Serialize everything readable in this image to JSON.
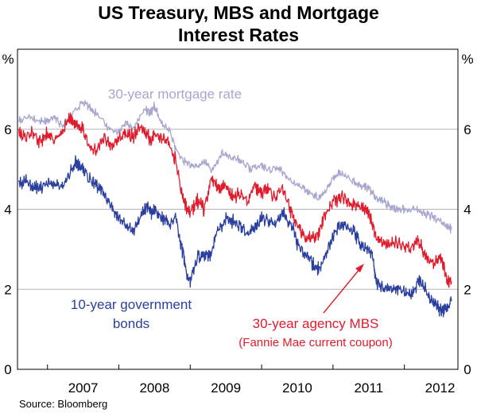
{
  "chart_data": {
    "type": "line",
    "title_line1": "US Treasury, MBS and Mortgage",
    "title_line2": "Interest Rates",
    "y_unit_left": "%",
    "y_unit_right": "%",
    "source": "Source: Bloomberg",
    "xlim": [
      2006.58,
      2012.75
    ],
    "ylim": [
      0,
      8
    ],
    "y_ticks": [
      0,
      2,
      4,
      6
    ],
    "x_ticks": [
      {
        "label": "2007",
        "year": 2007
      },
      {
        "label": "2008",
        "year": 2008
      },
      {
        "label": "2009",
        "year": 2009
      },
      {
        "label": "2010",
        "year": 2010
      },
      {
        "label": "2011",
        "year": 2011
      },
      {
        "label": "2012",
        "year": 2012
      }
    ],
    "grid": true,
    "colors": {
      "mortgage": "#a6a6cf",
      "mbs": "#e01b2c",
      "bonds": "#2a3f9e",
      "grid": "#b4b4b4"
    },
    "annotations": {
      "mortgage": "30-year mortgage rate",
      "bonds_line1": "10-year government",
      "bonds_line2": "bonds",
      "mbs_line1": "30-year agency MBS",
      "mbs_line2": "(Fannie Mae current coupon)"
    },
    "series": [
      {
        "key": "mortgage",
        "x": [
          2006.6,
          2006.75,
          2006.9,
          2007.0,
          2007.1,
          2007.2,
          2007.35,
          2007.5,
          2007.6,
          2007.7,
          2007.85,
          2008.0,
          2008.1,
          2008.2,
          2008.35,
          2008.45,
          2008.5,
          2008.6,
          2008.7,
          2008.8,
          2008.9,
          2009.0,
          2009.1,
          2009.2,
          2009.3,
          2009.45,
          2009.55,
          2009.7,
          2009.85,
          2010.0,
          2010.1,
          2010.25,
          2010.35,
          2010.5,
          2010.6,
          2010.7,
          2010.8,
          2010.9,
          2011.0,
          2011.1,
          2011.2,
          2011.3,
          2011.4,
          2011.5,
          2011.6,
          2011.7,
          2011.8,
          2011.9,
          2012.0,
          2012.1,
          2012.2,
          2012.3,
          2012.4,
          2012.5,
          2012.6,
          2012.66
        ],
        "y": [
          6.2,
          6.3,
          6.2,
          6.2,
          6.3,
          6.1,
          6.4,
          6.7,
          6.5,
          6.4,
          6.0,
          5.9,
          6.2,
          6.0,
          6.5,
          6.4,
          6.6,
          6.1,
          6.0,
          5.5,
          5.2,
          5.1,
          5.1,
          5.2,
          5.0,
          5.4,
          5.3,
          5.2,
          5.0,
          5.1,
          5.0,
          5.0,
          4.8,
          4.6,
          4.5,
          4.4,
          4.3,
          4.5,
          4.8,
          4.9,
          4.8,
          4.7,
          4.6,
          4.5,
          4.3,
          4.2,
          4.1,
          4.0,
          4.0,
          4.0,
          4.0,
          3.9,
          3.8,
          3.7,
          3.6,
          3.5
        ]
      },
      {
        "key": "mbs",
        "x": [
          2006.6,
          2006.7,
          2006.8,
          2006.9,
          2007.0,
          2007.1,
          2007.2,
          2007.3,
          2007.4,
          2007.5,
          2007.6,
          2007.7,
          2007.8,
          2007.9,
          2008.0,
          2008.1,
          2008.2,
          2008.3,
          2008.4,
          2008.45,
          2008.5,
          2008.6,
          2008.7,
          2008.8,
          2008.9,
          2008.95,
          2009.0,
          2009.1,
          2009.2,
          2009.3,
          2009.4,
          2009.5,
          2009.6,
          2009.7,
          2009.8,
          2009.9,
          2010.0,
          2010.1,
          2010.2,
          2010.3,
          2010.4,
          2010.5,
          2010.6,
          2010.7,
          2010.8,
          2010.9,
          2011.0,
          2011.1,
          2011.2,
          2011.3,
          2011.4,
          2011.5,
          2011.55,
          2011.6,
          2011.7,
          2011.8,
          2011.9,
          2012.0,
          2012.1,
          2012.2,
          2012.3,
          2012.4,
          2012.5,
          2012.55,
          2012.6,
          2012.66
        ],
        "y": [
          5.9,
          5.8,
          5.9,
          5.7,
          5.9,
          5.7,
          5.9,
          6.3,
          6.1,
          6.0,
          5.5,
          5.5,
          5.8,
          5.6,
          5.7,
          5.9,
          5.8,
          6.1,
          5.9,
          5.7,
          5.9,
          5.8,
          5.7,
          5.2,
          4.3,
          4.0,
          3.9,
          4.2,
          4.0,
          4.8,
          4.5,
          4.6,
          4.3,
          4.4,
          4.2,
          4.6,
          4.4,
          4.5,
          4.3,
          4.5,
          4.0,
          3.6,
          3.3,
          3.3,
          3.4,
          3.9,
          4.2,
          4.3,
          4.2,
          4.1,
          4.1,
          3.9,
          3.6,
          3.3,
          3.1,
          3.1,
          3.2,
          3.1,
          3.0,
          3.2,
          2.8,
          2.6,
          2.8,
          2.6,
          2.2,
          2.2
        ]
      },
      {
        "key": "bonds",
        "x": [
          2006.6,
          2006.7,
          2006.8,
          2006.9,
          2007.0,
          2007.1,
          2007.2,
          2007.3,
          2007.4,
          2007.45,
          2007.5,
          2007.6,
          2007.7,
          2007.8,
          2007.9,
          2008.0,
          2008.1,
          2008.2,
          2008.3,
          2008.4,
          2008.45,
          2008.5,
          2008.6,
          2008.65,
          2008.7,
          2008.8,
          2008.85,
          2008.9,
          2008.95,
          2009.0,
          2009.1,
          2009.2,
          2009.3,
          2009.4,
          2009.5,
          2009.6,
          2009.7,
          2009.8,
          2009.9,
          2010.0,
          2010.1,
          2010.2,
          2010.3,
          2010.35,
          2010.45,
          2010.5,
          2010.6,
          2010.7,
          2010.75,
          2010.8,
          2010.9,
          2011.0,
          2011.1,
          2011.2,
          2011.3,
          2011.4,
          2011.5,
          2011.55,
          2011.6,
          2011.7,
          2011.8,
          2011.9,
          2012.0,
          2012.1,
          2012.2,
          2012.3,
          2012.4,
          2012.45,
          2012.5,
          2012.55,
          2012.6,
          2012.66
        ],
        "y": [
          4.6,
          4.7,
          4.6,
          4.5,
          4.7,
          4.6,
          4.6,
          4.9,
          5.2,
          5.1,
          5.0,
          4.7,
          4.6,
          4.4,
          4.1,
          3.7,
          3.6,
          3.5,
          3.8,
          4.1,
          3.9,
          4.0,
          3.8,
          3.7,
          3.6,
          3.8,
          3.3,
          2.9,
          2.4,
          2.2,
          2.8,
          2.8,
          2.9,
          3.5,
          3.8,
          3.7,
          3.6,
          3.4,
          3.6,
          3.8,
          3.7,
          3.7,
          3.9,
          3.8,
          3.6,
          3.1,
          2.9,
          2.7,
          2.6,
          2.5,
          2.9,
          3.3,
          3.6,
          3.5,
          3.4,
          3.1,
          3.0,
          2.9,
          2.2,
          2.0,
          2.0,
          2.0,
          2.0,
          1.9,
          2.2,
          2.0,
          1.7,
          1.6,
          1.5,
          1.5,
          1.6,
          1.7
        ]
      }
    ]
  }
}
